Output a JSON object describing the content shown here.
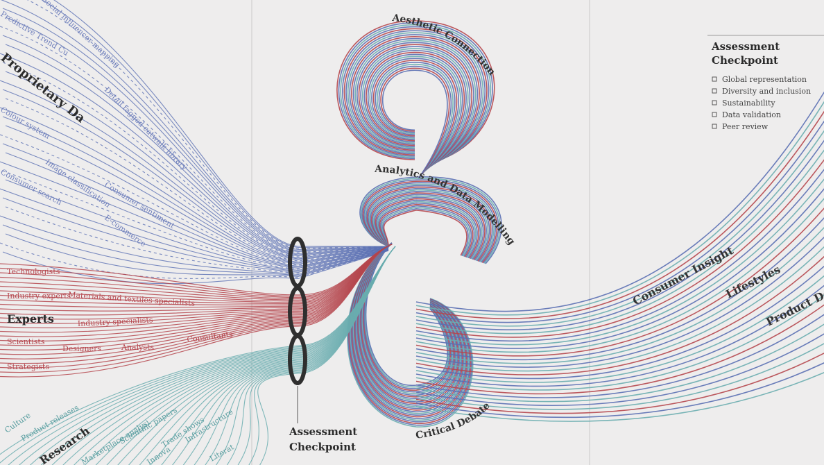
{
  "colors": {
    "background": "#eeeded",
    "blue": "#5a6fb3",
    "blue_text": "#6f7fbc",
    "red": "#b5464d",
    "red_text": "#b5464d",
    "teal": "#6aadaf",
    "teal_text": "#5a9ea0",
    "dark": "#2f2f2f"
  },
  "proprietary_data": {
    "title": "Proprietary Data",
    "items": [
      "Social influencer mapping",
      "Predictive Trend Curve",
      "Detail tagged catwalk library",
      "Colour system",
      "Image classification",
      "Consumer search",
      "Consumer sentiment",
      "E-commerce"
    ]
  },
  "experts": {
    "title": "Experts",
    "items": [
      "Technologists",
      "Industry experts",
      "Materials and textiles specialists",
      "Industry specialists",
      "Scientists",
      "Designers",
      "Analysts",
      "Consultants",
      "Strategists"
    ]
  },
  "research": {
    "title": "Research",
    "items": [
      "Culture",
      "Product releases",
      "Marketplace analysis",
      "Scientific papers",
      "Trade shows",
      "Infrastructure",
      "Innovation",
      "Literature"
    ]
  },
  "center_loops": {
    "top": "Aesthetic Connection",
    "middle": "Analytics and Data Modelling",
    "bottom": "Critical Debate"
  },
  "checkpoint_label": {
    "line1": "Assessment",
    "line2": "Checkpoint"
  },
  "outputs": [
    "Consumer Insight",
    "Lifestyles",
    "Product Development"
  ],
  "checkpoint_panel": {
    "title_line1": "Assessment",
    "title_line2": "Checkpoint",
    "items": [
      "Global representation",
      "Diversity and inclusion",
      "Sustainability",
      "Data validation",
      "Peer review"
    ]
  }
}
